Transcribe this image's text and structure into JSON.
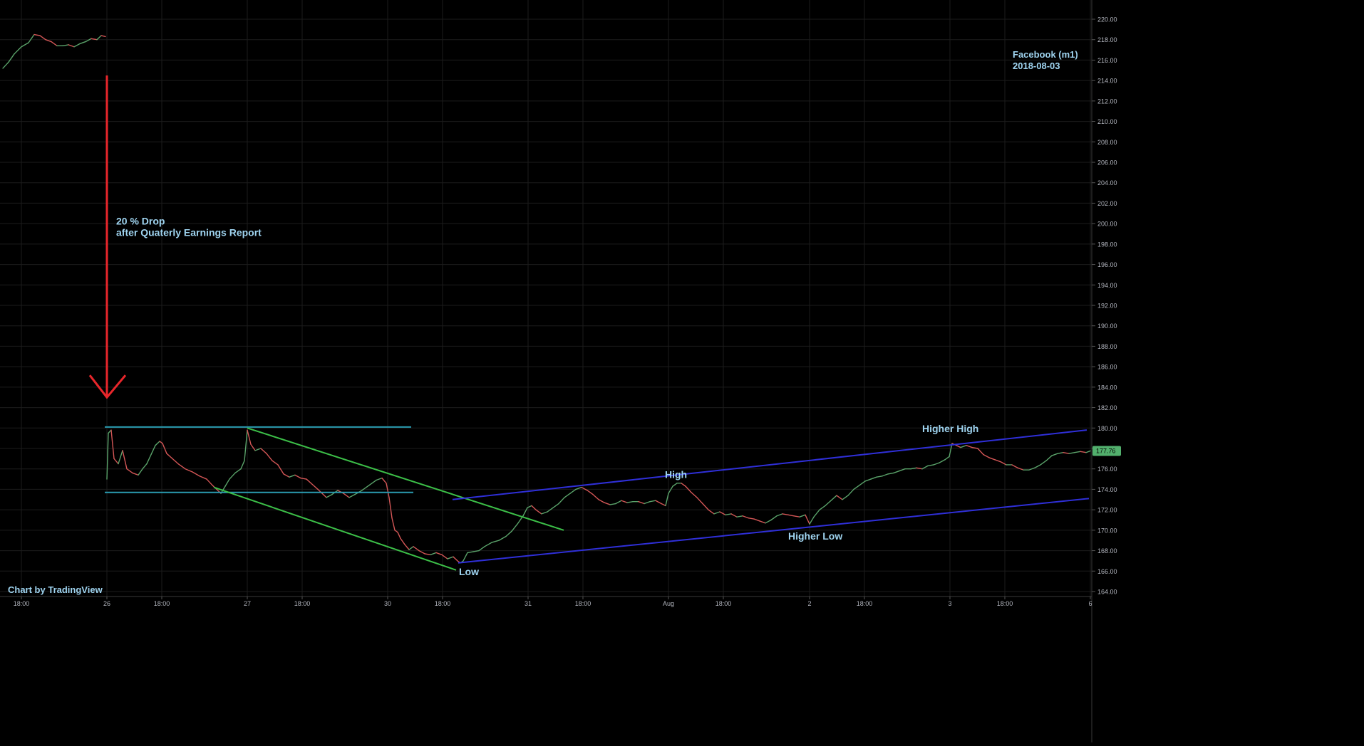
{
  "watermark": "Chart by TradingView",
  "header": {
    "symbol": "Facebook (m1)",
    "date": "2018-08-03"
  },
  "annotations": {
    "drop_line1": "20 % Drop",
    "drop_line2": "after Quaterly Earnings Report",
    "low": "Low",
    "high": "High",
    "higher_high": "Higher High",
    "higher_low": "Higher Low"
  },
  "colors": {
    "background": "#000000",
    "grid": "#1c1c1c",
    "axis_text": "#b2b5be",
    "annotation_text": "#9fd4f0",
    "arrow": "#e8262b",
    "consolidation_lines": "#2a9bb0",
    "down_channel": "#3cbf48",
    "up_channel": "#2f2fd8",
    "last_price_bg": "#52b06d",
    "candle_up": "#5aa36a",
    "candle_down": "#d35656"
  },
  "chart_data": {
    "type": "line",
    "subtype": "candlestick (1-minute, compressed session time)",
    "symbol": "Facebook (m1)",
    "ylim": [
      164.0,
      221.0
    ],
    "y_ticks": [
      164.0,
      166.0,
      168.0,
      170.0,
      172.0,
      174.0,
      176.0,
      178.0,
      180.0,
      182.0,
      184.0,
      186.0,
      188.0,
      190.0,
      192.0,
      194.0,
      196.0,
      198.0,
      200.0,
      202.0,
      204.0,
      206.0,
      208.0,
      210.0,
      212.0,
      214.0,
      216.0,
      218.0,
      220.0
    ],
    "y_tick_labels": [
      "164.00",
      "166.00",
      "168.00",
      "170.00",
      "172.00",
      "174.00",
      "176.00",
      "178.00",
      "180.00",
      "182.00",
      "184.00",
      "186.00",
      "188.00",
      "190.00",
      "192.00",
      "194.00",
      "196.00",
      "198.00",
      "200.00",
      "202.00",
      "204.00",
      "206.00",
      "208.00",
      "210.00",
      "212.00",
      "214.00",
      "216.00",
      "218.00",
      "220.00"
    ],
    "xlim": [
      0,
      1532
    ],
    "x_ticks": [
      {
        "label": "18:00",
        "t": 30
      },
      {
        "label": "26",
        "t": 150
      },
      {
        "label": "18:00",
        "t": 227
      },
      {
        "label": "27",
        "t": 347
      },
      {
        "label": "18:00",
        "t": 424
      },
      {
        "label": "30",
        "t": 544
      },
      {
        "label": "18:00",
        "t": 621
      },
      {
        "label": "31",
        "t": 741
      },
      {
        "label": "18:00",
        "t": 818
      },
      {
        "label": "Aug",
        "t": 938
      },
      {
        "label": "18:00",
        "t": 1015
      },
      {
        "label": "2",
        "t": 1136
      },
      {
        "label": "18:00",
        "t": 1213
      },
      {
        "label": "3",
        "t": 1333
      },
      {
        "label": "18:00",
        "t": 1410
      },
      {
        "label": "6",
        "t": 1530
      }
    ],
    "last_price": 177.76,
    "last_price_label": "177.76",
    "price_path": [
      [
        4,
        215.2
      ],
      [
        12,
        215.8
      ],
      [
        20,
        216.6
      ],
      [
        30,
        217.3
      ],
      [
        40,
        217.7
      ],
      [
        48,
        218.5
      ],
      [
        56,
        218.4
      ],
      [
        64,
        218.0
      ],
      [
        72,
        217.8
      ],
      [
        80,
        217.4
      ],
      [
        88,
        217.4
      ],
      [
        96,
        217.5
      ],
      [
        104,
        217.3
      ],
      [
        112,
        217.6
      ],
      [
        120,
        217.8
      ],
      [
        128,
        218.1
      ],
      [
        136,
        218.0
      ],
      [
        142,
        218.4
      ],
      [
        148,
        218.3
      ],
      [
        150,
        175.0
      ],
      [
        152,
        179.5
      ],
      [
        156,
        179.8
      ],
      [
        160,
        177.0
      ],
      [
        166,
        176.5
      ],
      [
        172,
        177.8
      ],
      [
        178,
        176.0
      ],
      [
        186,
        175.6
      ],
      [
        194,
        175.4
      ],
      [
        200,
        176.0
      ],
      [
        206,
        176.5
      ],
      [
        212,
        177.4
      ],
      [
        218,
        178.3
      ],
      [
        224,
        178.7
      ],
      [
        228,
        178.5
      ],
      [
        234,
        177.5
      ],
      [
        242,
        177.0
      ],
      [
        250,
        176.5
      ],
      [
        260,
        176.0
      ],
      [
        270,
        175.7
      ],
      [
        280,
        175.3
      ],
      [
        290,
        175.0
      ],
      [
        298,
        174.4
      ],
      [
        304,
        174.0
      ],
      [
        310,
        173.6
      ],
      [
        316,
        174.3
      ],
      [
        322,
        175.0
      ],
      [
        330,
        175.6
      ],
      [
        338,
        176.0
      ],
      [
        343,
        176.8
      ],
      [
        347,
        179.8
      ],
      [
        352,
        178.4
      ],
      [
        358,
        177.8
      ],
      [
        366,
        178.0
      ],
      [
        374,
        177.5
      ],
      [
        382,
        176.8
      ],
      [
        390,
        176.4
      ],
      [
        398,
        175.5
      ],
      [
        406,
        175.2
      ],
      [
        414,
        175.4
      ],
      [
        422,
        175.1
      ],
      [
        430,
        175.0
      ],
      [
        438,
        174.5
      ],
      [
        446,
        174.0
      ],
      [
        452,
        173.6
      ],
      [
        458,
        173.2
      ],
      [
        466,
        173.5
      ],
      [
        474,
        173.9
      ],
      [
        482,
        173.6
      ],
      [
        490,
        173.2
      ],
      [
        498,
        173.5
      ],
      [
        508,
        173.9
      ],
      [
        518,
        174.4
      ],
      [
        528,
        174.9
      ],
      [
        536,
        175.1
      ],
      [
        542,
        174.6
      ],
      [
        546,
        173.2
      ],
      [
        550,
        171.2
      ],
      [
        554,
        170.0
      ],
      [
        558,
        169.8
      ],
      [
        562,
        169.2
      ],
      [
        568,
        168.6
      ],
      [
        574,
        168.1
      ],
      [
        580,
        168.4
      ],
      [
        588,
        168.0
      ],
      [
        596,
        167.7
      ],
      [
        604,
        167.6
      ],
      [
        612,
        167.8
      ],
      [
        620,
        167.6
      ],
      [
        628,
        167.2
      ],
      [
        636,
        167.4
      ],
      [
        642,
        167.0
      ],
      [
        646,
        166.8
      ],
      [
        650,
        167.0
      ],
      [
        656,
        167.8
      ],
      [
        664,
        167.9
      ],
      [
        672,
        168.0
      ],
      [
        680,
        168.4
      ],
      [
        690,
        168.8
      ],
      [
        700,
        169.0
      ],
      [
        710,
        169.4
      ],
      [
        718,
        169.9
      ],
      [
        726,
        170.6
      ],
      [
        734,
        171.4
      ],
      [
        740,
        172.2
      ],
      [
        746,
        172.4
      ],
      [
        752,
        172.0
      ],
      [
        760,
        171.6
      ],
      [
        768,
        171.8
      ],
      [
        776,
        172.2
      ],
      [
        784,
        172.6
      ],
      [
        792,
        173.2
      ],
      [
        800,
        173.6
      ],
      [
        808,
        174.0
      ],
      [
        816,
        174.2
      ],
      [
        824,
        173.9
      ],
      [
        832,
        173.5
      ],
      [
        840,
        173.0
      ],
      [
        848,
        172.7
      ],
      [
        856,
        172.5
      ],
      [
        864,
        172.6
      ],
      [
        872,
        172.9
      ],
      [
        880,
        172.7
      ],
      [
        888,
        172.8
      ],
      [
        896,
        172.8
      ],
      [
        904,
        172.6
      ],
      [
        912,
        172.8
      ],
      [
        920,
        172.9
      ],
      [
        928,
        172.6
      ],
      [
        934,
        172.4
      ],
      [
        938,
        173.6
      ],
      [
        944,
        174.3
      ],
      [
        950,
        174.6
      ],
      [
        956,
        174.6
      ],
      [
        962,
        174.3
      ],
      [
        970,
        173.7
      ],
      [
        978,
        173.2
      ],
      [
        986,
        172.6
      ],
      [
        994,
        172.0
      ],
      [
        1002,
        171.6
      ],
      [
        1010,
        171.8
      ],
      [
        1018,
        171.5
      ],
      [
        1026,
        171.6
      ],
      [
        1034,
        171.3
      ],
      [
        1042,
        171.4
      ],
      [
        1050,
        171.2
      ],
      [
        1058,
        171.1
      ],
      [
        1066,
        170.9
      ],
      [
        1074,
        170.7
      ],
      [
        1082,
        171.0
      ],
      [
        1090,
        171.4
      ],
      [
        1098,
        171.6
      ],
      [
        1106,
        171.5
      ],
      [
        1114,
        171.4
      ],
      [
        1122,
        171.3
      ],
      [
        1130,
        171.5
      ],
      [
        1136,
        170.6
      ],
      [
        1142,
        171.3
      ],
      [
        1150,
        172.0
      ],
      [
        1158,
        172.4
      ],
      [
        1166,
        172.9
      ],
      [
        1174,
        173.4
      ],
      [
        1182,
        173.0
      ],
      [
        1190,
        173.4
      ],
      [
        1198,
        174.0
      ],
      [
        1206,
        174.4
      ],
      [
        1214,
        174.8
      ],
      [
        1222,
        175.0
      ],
      [
        1230,
        175.2
      ],
      [
        1238,
        175.3
      ],
      [
        1246,
        175.5
      ],
      [
        1254,
        175.6
      ],
      [
        1262,
        175.8
      ],
      [
        1270,
        176.0
      ],
      [
        1278,
        176.0
      ],
      [
        1286,
        176.1
      ],
      [
        1294,
        176.0
      ],
      [
        1302,
        176.3
      ],
      [
        1310,
        176.4
      ],
      [
        1318,
        176.6
      ],
      [
        1326,
        176.9
      ],
      [
        1332,
        177.2
      ],
      [
        1336,
        178.5
      ],
      [
        1342,
        178.3
      ],
      [
        1348,
        178.1
      ],
      [
        1356,
        178.3
      ],
      [
        1364,
        178.1
      ],
      [
        1372,
        178.0
      ],
      [
        1380,
        177.4
      ],
      [
        1388,
        177.1
      ],
      [
        1396,
        176.9
      ],
      [
        1404,
        176.7
      ],
      [
        1412,
        176.4
      ],
      [
        1420,
        176.4
      ],
      [
        1428,
        176.1
      ],
      [
        1436,
        175.9
      ],
      [
        1444,
        175.9
      ],
      [
        1452,
        176.1
      ],
      [
        1460,
        176.4
      ],
      [
        1468,
        176.8
      ],
      [
        1476,
        177.3
      ],
      [
        1484,
        177.5
      ],
      [
        1492,
        177.6
      ],
      [
        1500,
        177.5
      ],
      [
        1508,
        177.6
      ],
      [
        1516,
        177.7
      ],
      [
        1524,
        177.6
      ],
      [
        1530,
        177.76
      ]
    ],
    "trendlines": [
      {
        "name": "consolidation-top",
        "color_key": "consolidation_lines",
        "from": [
          147,
          180.1
        ],
        "to": [
          577,
          180.1
        ]
      },
      {
        "name": "consolidation-bottom",
        "color_key": "consolidation_lines",
        "from": [
          147,
          173.7
        ],
        "to": [
          580,
          173.7
        ]
      },
      {
        "name": "down-channel-upper",
        "color_key": "down_channel",
        "from": [
          347,
          180.0
        ],
        "to": [
          791,
          170.0
        ]
      },
      {
        "name": "down-channel-lower",
        "color_key": "down_channel",
        "from": [
          300,
          174.2
        ],
        "to": [
          640,
          166.1
        ]
      },
      {
        "name": "up-channel-upper",
        "color_key": "up_channel",
        "from": [
          635,
          173.0
        ],
        "to": [
          1525,
          179.8
        ]
      },
      {
        "name": "up-channel-lower",
        "color_key": "up_channel",
        "from": [
          643,
          166.8
        ],
        "to": [
          1528,
          173.1
        ]
      }
    ],
    "drop_arrow": {
      "from": [
        150,
        214.5
      ],
      "to": [
        150,
        183.0
      ]
    },
    "labels": [
      {
        "key": "drop_line1",
        "t": 163,
        "y": 199.9
      },
      {
        "key": "drop_line2",
        "t": 163,
        "y": 198.8
      },
      {
        "key": "low",
        "t": 644,
        "y": 165.6
      },
      {
        "key": "high",
        "t": 933,
        "y": 175.1
      },
      {
        "key": "higher_high",
        "t": 1294,
        "y": 179.6
      },
      {
        "key": "higher_low",
        "t": 1106,
        "y": 169.1
      }
    ]
  }
}
